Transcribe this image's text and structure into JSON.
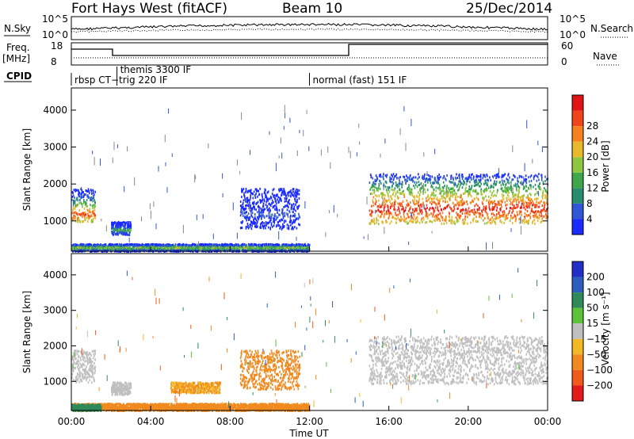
{
  "header": {
    "title": "Fort Hays West (fitACF)",
    "beam": "Beam 10",
    "date": "25/Dec/2014"
  },
  "status_panels": {
    "nsky_label": "N.Sky",
    "nsky_ticks": [
      "10^5",
      "10^0"
    ],
    "nsearch_label": "N.Search",
    "nsearch_ticks": [
      "10^5",
      "10^0"
    ],
    "freq_label": "Freq.",
    "freq_unit": "[MHz]",
    "freq_ticks": [
      "18",
      "8"
    ],
    "nave_label": "Nave",
    "nave_ticks": [
      "60",
      "0"
    ],
    "cpid_label": "CPID",
    "cpid_segments": [
      {
        "label": "rbsp CT−trig 220 IF",
        "start_hr": 0.0,
        "end_hr": 2.3
      },
      {
        "label": "themis 3300 IF",
        "start_hr": 2.3,
        "end_hr": 12.0
      },
      {
        "label": "normal (fast) 151 IF",
        "start_hr": 12.0,
        "end_hr": 24.0
      }
    ]
  },
  "axes": {
    "x_ticks": [
      "00:00",
      "04:00",
      "08:00",
      "12:00",
      "16:00",
      "20:00",
      "00:00"
    ],
    "x_label": "Time UT",
    "y_label": "Slant Range [km]",
    "y_ticks": [
      "1000",
      "2000",
      "3000",
      "4000"
    ]
  },
  "colorbars": {
    "power": {
      "label": "Power [dB]",
      "ticks": [
        "4",
        "8",
        "12",
        "16",
        "20",
        "24",
        "28"
      ],
      "colors": [
        "#1a2bff",
        "#2f57d6",
        "#2a8c6f",
        "#3fa64a",
        "#8dc63f",
        "#e8b92a",
        "#f5821f",
        "#f0441c",
        "#e01414"
      ]
    },
    "velocity": {
      "label": "Velocity [m s⁻¹]",
      "ticks": [
        "200",
        "100",
        "50",
        "15",
        "−15",
        "−50",
        "−100",
        "−200"
      ],
      "colors": [
        "#2230c8",
        "#2a5fbf",
        "#2f8a5a",
        "#5cc23a",
        "#bfbfbf",
        "#f2b825",
        "#f08a1f",
        "#f05a1a",
        "#e21a1a"
      ]
    }
  },
  "chart_data": [
    {
      "type": "heatmap",
      "title": "Power",
      "x_range_hours": [
        0,
        24
      ],
      "y_range_km": [
        180,
        4600
      ],
      "regions": [
        {
          "t": [
            0.0,
            1.2
          ],
          "r": [
            1000,
            1900
          ],
          "core_r": 1200,
          "level": 0.85
        },
        {
          "t": [
            2.0,
            3.0
          ],
          "r": [
            650,
            1000
          ],
          "core_r": 780,
          "level": 0.4
        },
        {
          "t": [
            8.5,
            11.5
          ],
          "r": [
            800,
            1900
          ],
          "core_r": 1200,
          "level": 0.15
        },
        {
          "t": [
            15.0,
            24.0
          ],
          "r": [
            950,
            2300
          ],
          "core_r": 1350,
          "level": 0.95
        },
        {
          "t": [
            0.0,
            12.0
          ],
          "r": [
            200,
            400
          ],
          "core_r": 300,
          "level": 0.55
        }
      ]
    },
    {
      "type": "heatmap",
      "title": "Velocity",
      "x_range_hours": [
        0,
        24
      ],
      "y_range_km": [
        180,
        4600
      ],
      "regions": [
        {
          "t": [
            0.0,
            1.2
          ],
          "r": [
            1000,
            1900
          ],
          "v": 0
        },
        {
          "t": [
            2.0,
            3.0
          ],
          "r": [
            650,
            1000
          ],
          "v": 0
        },
        {
          "t": [
            5.0,
            7.5
          ],
          "r": [
            700,
            1000
          ],
          "v": -30
        },
        {
          "t": [
            8.5,
            11.5
          ],
          "r": [
            800,
            1900
          ],
          "v": -45
        },
        {
          "t": [
            15.0,
            24.0
          ],
          "r": [
            950,
            2300
          ],
          "v": 0
        },
        {
          "t": [
            0.0,
            12.0
          ],
          "r": [
            200,
            400
          ],
          "v": -35
        },
        {
          "t": [
            0.0,
            1.5
          ],
          "r": [
            200,
            380
          ],
          "v": 40
        }
      ]
    }
  ]
}
